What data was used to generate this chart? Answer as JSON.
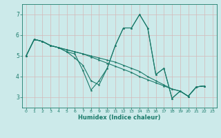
{
  "xlabel": "Humidex (Indice chaleur)",
  "background_color": "#cceaea",
  "grid_color": "#b8d8d8",
  "line_color": "#1a7a6a",
  "xlim": [
    -0.5,
    23.5
  ],
  "ylim": [
    2.5,
    7.5
  ],
  "yticks": [
    3,
    4,
    5,
    6,
    7
  ],
  "xticks": [
    0,
    1,
    2,
    3,
    4,
    5,
    6,
    7,
    8,
    9,
    10,
    11,
    12,
    13,
    14,
    15,
    16,
    17,
    18,
    19,
    20,
    21,
    22,
    23
  ],
  "series": [
    {
      "x": [
        0,
        1,
        2,
        3,
        4,
        5,
        6,
        7,
        8,
        9,
        10,
        11,
        12,
        13,
        14,
        15,
        16,
        17,
        18,
        19,
        20,
        21,
        22
      ],
      "y": [
        5.0,
        5.8,
        5.7,
        5.5,
        5.4,
        5.2,
        5.1,
        4.3,
        3.35,
        3.8,
        4.4,
        5.5,
        6.35,
        6.35,
        7.0,
        6.35,
        4.1,
        4.4,
        2.95,
        3.3,
        3.05,
        3.5,
        3.55
      ]
    },
    {
      "x": [
        0,
        1,
        2,
        3,
        4,
        5,
        6,
        7,
        8,
        9,
        10,
        11,
        12,
        13,
        14,
        15,
        16,
        17,
        18,
        19,
        20,
        21,
        22
      ],
      "y": [
        5.0,
        5.8,
        5.7,
        5.5,
        5.4,
        5.2,
        4.9,
        4.55,
        3.8,
        3.6,
        4.4,
        5.5,
        6.35,
        6.35,
        7.0,
        6.35,
        4.1,
        4.4,
        2.95,
        3.3,
        3.05,
        3.5,
        3.55
      ]
    },
    {
      "x": [
        0,
        1,
        2,
        3,
        4,
        5,
        6,
        7,
        8,
        9,
        10,
        11,
        12,
        13,
        14,
        15,
        16,
        17,
        18,
        19,
        20,
        21,
        22
      ],
      "y": [
        5.0,
        5.8,
        5.7,
        5.5,
        5.4,
        5.3,
        5.2,
        5.1,
        5.0,
        4.9,
        4.8,
        4.7,
        4.55,
        4.4,
        4.25,
        4.0,
        3.8,
        3.6,
        3.4,
        3.3,
        3.05,
        3.5,
        3.55
      ]
    },
    {
      "x": [
        0,
        1,
        2,
        3,
        4,
        5,
        6,
        7,
        8,
        9,
        10,
        11,
        12,
        13,
        14,
        15,
        16,
        17,
        18,
        19,
        20,
        21,
        22
      ],
      "y": [
        5.0,
        5.8,
        5.7,
        5.5,
        5.4,
        5.3,
        5.2,
        5.1,
        4.95,
        4.8,
        4.65,
        4.5,
        4.35,
        4.2,
        4.0,
        3.85,
        3.7,
        3.55,
        3.4,
        3.3,
        3.05,
        3.5,
        3.55
      ]
    }
  ]
}
